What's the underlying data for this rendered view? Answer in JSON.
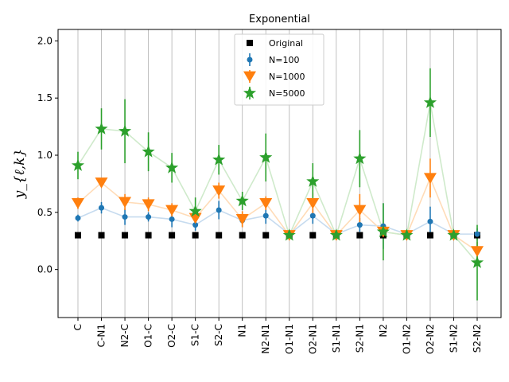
{
  "chart_data": {
    "type": "scatter",
    "title": "Exponential",
    "ylabel": "y_{ℓ,k}",
    "xlabel": "",
    "ylim": [
      -0.42,
      2.1
    ],
    "yticks": [
      0.0,
      0.5,
      1.0,
      1.5,
      2.0
    ],
    "ytick_labels": [
      "0.0",
      "0.5",
      "1.0",
      "1.5",
      "2.0"
    ],
    "categories": [
      "C",
      "C-N1",
      "N2-C",
      "O1-C",
      "O2-C",
      "S1-C",
      "S2-C",
      "N1",
      "N2-N1",
      "O1-N1",
      "O2-N1",
      "S1-N1",
      "S2-N1",
      "N2",
      "O1-N2",
      "O2-N2",
      "S1-N2",
      "S2-N2"
    ],
    "grid": "vertical",
    "legend_position": "top-center",
    "series": [
      {
        "name": "Original",
        "marker": "square",
        "color": "#000000",
        "values": [
          0.3,
          0.3,
          0.3,
          0.3,
          0.3,
          0.3,
          0.3,
          0.3,
          0.3,
          0.3,
          0.3,
          0.3,
          0.3,
          0.3,
          0.3,
          0.3,
          0.3,
          0.3
        ],
        "errors": null
      },
      {
        "name": "N=100",
        "marker": "circle",
        "color": "#1f77b4",
        "line_color": "#c6dbef",
        "values": [
          0.45,
          0.54,
          0.46,
          0.46,
          0.44,
          0.39,
          0.52,
          0.43,
          0.47,
          0.31,
          0.47,
          0.31,
          0.39,
          0.38,
          0.31,
          0.42,
          0.31,
          0.31
        ],
        "errors": [
          0.03,
          0.05,
          0.07,
          0.04,
          0.07,
          0.05,
          0.08,
          0.06,
          0.07,
          0.02,
          0.07,
          0.02,
          0.06,
          0.2,
          0.02,
          0.13,
          0.02,
          0.05
        ]
      },
      {
        "name": "N=1000",
        "marker": "triangle-down",
        "color": "#ff7f0e",
        "line_color": "#ffdcb8",
        "values": [
          0.58,
          0.76,
          0.59,
          0.57,
          0.52,
          0.45,
          0.69,
          0.44,
          0.58,
          0.3,
          0.58,
          0.3,
          0.52,
          0.33,
          0.3,
          0.8,
          0.3,
          0.16
        ],
        "errors": [
          0.05,
          0.04,
          0.07,
          0.06,
          0.06,
          0.05,
          0.07,
          0.07,
          0.06,
          0.02,
          0.09,
          0.02,
          0.14,
          0.06,
          0.02,
          0.17,
          0.02,
          0.08
        ]
      },
      {
        "name": "N=5000",
        "marker": "star",
        "color": "#2ca02c",
        "line_color": "#cfeacb",
        "values": [
          0.91,
          1.23,
          1.21,
          1.03,
          0.89,
          0.51,
          0.96,
          0.6,
          0.98,
          0.3,
          0.77,
          0.3,
          0.97,
          0.33,
          0.3,
          1.46,
          0.3,
          0.06
        ],
        "errors": [
          0.12,
          0.18,
          0.28,
          0.17,
          0.13,
          0.12,
          0.13,
          0.08,
          0.21,
          0.02,
          0.16,
          0.02,
          0.25,
          0.25,
          0.02,
          0.3,
          0.02,
          0.33
        ]
      }
    ]
  }
}
